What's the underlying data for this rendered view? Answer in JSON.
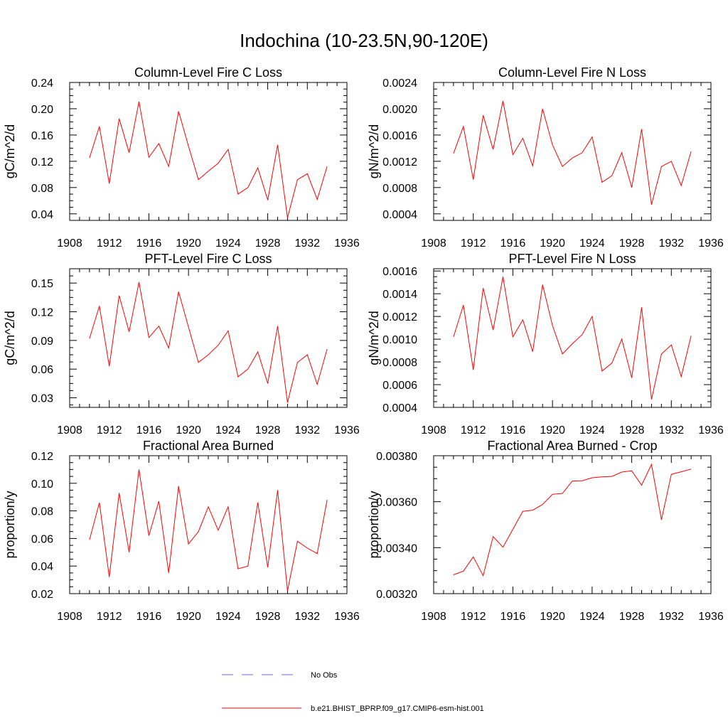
{
  "figure": {
    "title": "Indochina (10-23.5N,90-120E)",
    "line_color": "#ff0000",
    "obs_color": "#6a6ae0"
  },
  "legend": {
    "items": [
      {
        "label": "No Obs",
        "style": "dashed",
        "color": "#6a6ae0"
      },
      {
        "label": "b.e21.BHIST_BPRP.f09_g17.CMIP6-esm-hist.001",
        "style": "solid",
        "color": "#ff0000"
      }
    ]
  },
  "chart_data": [
    {
      "type": "line",
      "title": "Column-Level Fire C Loss",
      "ylabel": "gC/m^2/d",
      "xlim": [
        1908,
        1936
      ],
      "xticks": [
        "1908",
        "1912",
        "1916",
        "1920",
        "1924",
        "1928",
        "1932",
        "1936"
      ],
      "ylim": [
        0.03,
        0.24
      ],
      "yticks": [
        "0.04",
        "0.08",
        "0.12",
        "0.16",
        "0.20",
        "0.24"
      ],
      "x": [
        1910,
        1911,
        1912,
        1913,
        1914,
        1915,
        1916,
        1917,
        1918,
        1919,
        1920,
        1921,
        1922,
        1923,
        1924,
        1925,
        1926,
        1927,
        1928,
        1929,
        1930,
        1931,
        1932,
        1933,
        1934
      ],
      "series": [
        {
          "values": [
            0.125,
            0.173,
            0.086,
            0.185,
            0.133,
            0.211,
            0.126,
            0.147,
            0.112,
            0.196,
            0.143,
            0.092,
            0.105,
            0.117,
            0.138,
            0.07,
            0.08,
            0.11,
            0.061,
            0.145,
            0.034,
            0.092,
            0.101,
            0.062,
            0.112
          ]
        }
      ]
    },
    {
      "type": "line",
      "title": "Column-Level Fire N Loss",
      "ylabel": "gN/m^2/d",
      "xlim": [
        1908,
        1936
      ],
      "xticks": [
        "1908",
        "1912",
        "1916",
        "1920",
        "1924",
        "1928",
        "1932",
        "1936"
      ],
      "ylim": [
        0.0003,
        0.0024
      ],
      "yticks": [
        "0.0004",
        "0.0008",
        "0.0012",
        "0.0016",
        "0.0020",
        "0.0024"
      ],
      "x": [
        1910,
        1911,
        1912,
        1913,
        1914,
        1915,
        1916,
        1917,
        1918,
        1919,
        1920,
        1921,
        1922,
        1923,
        1924,
        1925,
        1926,
        1927,
        1928,
        1929,
        1930,
        1931,
        1932,
        1933,
        1934
      ],
      "series": [
        {
          "values": [
            0.00132,
            0.00173,
            0.00092,
            0.0019,
            0.00138,
            0.00212,
            0.0013,
            0.00155,
            0.00113,
            0.002,
            0.00145,
            0.00112,
            0.00125,
            0.00133,
            0.00157,
            0.00088,
            0.00098,
            0.00133,
            0.0008,
            0.00169,
            0.00054,
            0.00112,
            0.0012,
            0.00083,
            0.00135
          ]
        }
      ]
    },
    {
      "type": "line",
      "title": "PFT-Level Fire C Loss",
      "ylabel": "gC/m^2/d",
      "xlim": [
        1908,
        1936
      ],
      "xticks": [
        "1908",
        "1912",
        "1916",
        "1920",
        "1924",
        "1928",
        "1932",
        "1936"
      ],
      "ylim": [
        0.02,
        0.165
      ],
      "yticks": [
        "0.03",
        "0.06",
        "0.09",
        "0.12",
        "0.15"
      ],
      "x": [
        1910,
        1911,
        1912,
        1913,
        1914,
        1915,
        1916,
        1917,
        1918,
        1919,
        1920,
        1921,
        1922,
        1923,
        1924,
        1925,
        1926,
        1927,
        1928,
        1929,
        1930,
        1931,
        1932,
        1933,
        1934
      ],
      "series": [
        {
          "values": [
            0.092,
            0.126,
            0.063,
            0.137,
            0.099,
            0.151,
            0.093,
            0.105,
            0.082,
            0.141,
            0.104,
            0.067,
            0.075,
            0.085,
            0.1,
            0.052,
            0.06,
            0.078,
            0.045,
            0.105,
            0.025,
            0.067,
            0.075,
            0.044,
            0.081
          ]
        }
      ]
    },
    {
      "type": "line",
      "title": "PFT-Level Fire N Loss",
      "ylabel": "gN/m^2/d",
      "xlim": [
        1908,
        1936
      ],
      "xticks": [
        "1908",
        "1912",
        "1916",
        "1920",
        "1924",
        "1928",
        "1932",
        "1936"
      ],
      "ylim": [
        0.0004,
        0.00162
      ],
      "yticks": [
        "0.0004",
        "0.0006",
        "0.0008",
        "0.0010",
        "0.0012",
        "0.0014",
        "0.0016"
      ],
      "x": [
        1910,
        1911,
        1912,
        1913,
        1914,
        1915,
        1916,
        1917,
        1918,
        1919,
        1920,
        1921,
        1922,
        1923,
        1924,
        1925,
        1926,
        1927,
        1928,
        1929,
        1930,
        1931,
        1932,
        1933,
        1934
      ],
      "series": [
        {
          "values": [
            0.00102,
            0.0013,
            0.00073,
            0.00145,
            0.00108,
            0.00155,
            0.00102,
            0.00117,
            0.00089,
            0.00148,
            0.00112,
            0.00087,
            0.00096,
            0.00104,
            0.0012,
            0.00072,
            0.00079,
            0.001,
            0.00066,
            0.00128,
            0.00047,
            0.00087,
            0.00095,
            0.00067,
            0.00103
          ]
        }
      ]
    },
    {
      "type": "line",
      "title": "Fractional Area Burned",
      "ylabel": "proportion/y",
      "xlim": [
        1908,
        1936
      ],
      "xticks": [
        "1908",
        "1912",
        "1916",
        "1920",
        "1924",
        "1928",
        "1932",
        "1936"
      ],
      "ylim": [
        0.02,
        0.12
      ],
      "yticks": [
        "0.02",
        "0.04",
        "0.06",
        "0.08",
        "0.10",
        "0.12"
      ],
      "x": [
        1910,
        1911,
        1912,
        1913,
        1914,
        1915,
        1916,
        1917,
        1918,
        1919,
        1920,
        1921,
        1922,
        1923,
        1924,
        1925,
        1926,
        1927,
        1928,
        1929,
        1930,
        1931,
        1932,
        1933,
        1934
      ],
      "series": [
        {
          "values": [
            0.059,
            0.086,
            0.032,
            0.093,
            0.05,
            0.11,
            0.062,
            0.087,
            0.035,
            0.098,
            0.056,
            0.065,
            0.083,
            0.066,
            0.083,
            0.038,
            0.04,
            0.086,
            0.039,
            0.095,
            0.022,
            0.058,
            0.053,
            0.049,
            0.088
          ]
        }
      ]
    },
    {
      "type": "line",
      "title": "Fractional Area Burned - Crop",
      "ylabel": "proportion/y",
      "xlim": [
        1908,
        1936
      ],
      "xticks": [
        "1908",
        "1912",
        "1916",
        "1920",
        "1924",
        "1928",
        "1932",
        "1936"
      ],
      "ylim": [
        0.0032,
        0.0038
      ],
      "yticks": [
        "0.00320",
        "0.00340",
        "0.00360",
        "0.00380"
      ],
      "x": [
        1910,
        1911,
        1912,
        1913,
        1914,
        1915,
        1916,
        1917,
        1918,
        1919,
        1920,
        1921,
        1922,
        1923,
        1924,
        1925,
        1926,
        1927,
        1928,
        1929,
        1930,
        1931,
        1932,
        1933,
        1934
      ],
      "series": [
        {
          "values": [
            0.003282,
            0.003298,
            0.00336,
            0.003278,
            0.003448,
            0.003402,
            0.00348,
            0.003558,
            0.003563,
            0.003588,
            0.003632,
            0.003636,
            0.00369,
            0.003691,
            0.003704,
            0.003708,
            0.00371,
            0.003729,
            0.003734,
            0.003672,
            0.003762,
            0.003521,
            0.003719,
            0.00373,
            0.003742
          ]
        }
      ]
    }
  ]
}
